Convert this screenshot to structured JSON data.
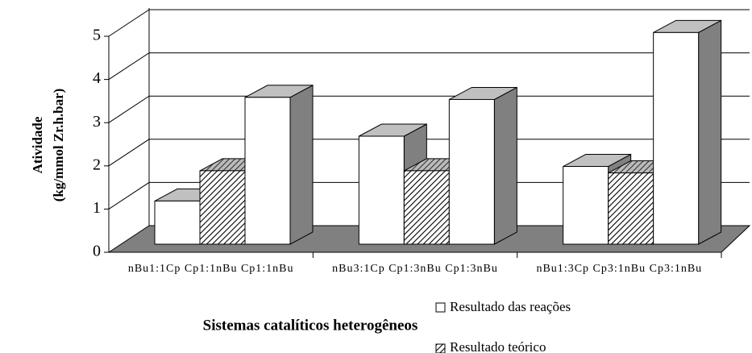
{
  "chart_data": {
    "type": "bar3d",
    "ylabel": [
      "Atividade",
      "(kg/mmol Zr.h.bar)"
    ],
    "xlabel": "Sistemas catalíticos heterogêneos",
    "categories": [
      "nBu1:1Cp Cp1:1nBu Cp1:1nBu",
      "nBu3:1Cp Cp1:3nBu Cp1:3nBu",
      "nBu1:3Cp Cp3:1nBu Cp3:1nBu"
    ],
    "series": [
      {
        "name": "Resultado das reações",
        "color": "#ffffff",
        "values": [
          [
            1.0,
            3.4
          ],
          [
            2.5,
            3.35
          ],
          [
            1.8,
            4.9
          ]
        ]
      },
      {
        "name": "Resultado teórico",
        "color": "hatch",
        "values": [
          1.7,
          1.7,
          1.65
        ]
      }
    ],
    "ylim": [
      0,
      5
    ],
    "yticks": [
      0,
      1,
      2,
      3,
      4,
      5
    ],
    "grid": true,
    "legend": "bottom-right"
  }
}
